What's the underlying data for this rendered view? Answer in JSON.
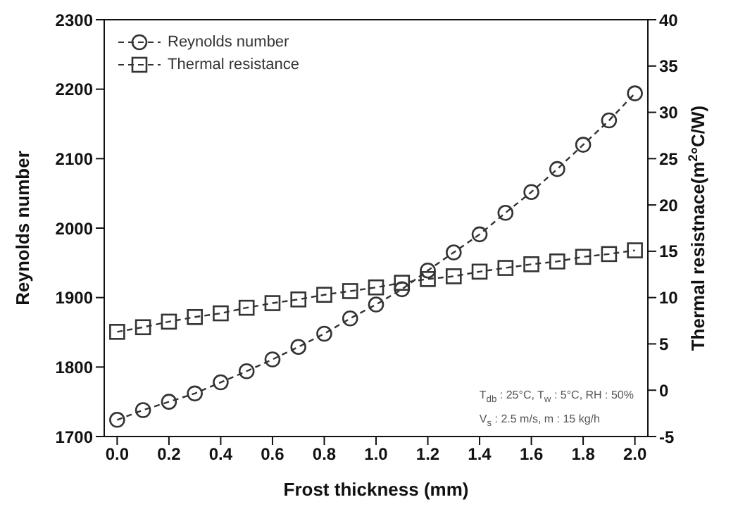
{
  "chart_data": {
    "type": "line",
    "xlabel": "Frost thickness (mm)",
    "ylabel": "Reynolds number",
    "y2label": "Thermal resistnace(m$^{2}$°C/W)",
    "x": [
      0.0,
      0.1,
      0.2,
      0.3,
      0.4,
      0.5,
      0.6,
      0.7,
      0.8,
      0.9,
      1.0,
      1.1,
      1.2,
      1.3,
      1.4,
      1.5,
      1.6,
      1.7,
      1.8,
      1.9,
      2.0
    ],
    "series": [
      {
        "name": "Reynolds number",
        "color": "#333333",
        "marker": "circle",
        "values": [
          1724,
          1738,
          1750,
          1762,
          1778,
          1794,
          1811,
          1829,
          1848,
          1870,
          1890,
          1912,
          1939,
          1965,
          1991,
          2022,
          2052,
          2085,
          2120,
          2155,
          2194
        ]
      },
      {
        "name": "Thermal resistance",
        "color": "#333333",
        "marker": "square",
        "axis": "y2",
        "values": [
          6.3,
          6.8,
          7.4,
          7.9,
          8.3,
          8.9,
          9.4,
          9.8,
          10.3,
          10.7,
          11.1,
          11.6,
          12.0,
          12.3,
          12.8,
          13.2,
          13.6,
          13.9,
          14.4,
          14.7,
          15.1
        ]
      }
    ],
    "line_style": "dashed",
    "xlim": [
      -0.05,
      2.05
    ],
    "xticks": [
      {
        "value": 0,
        "label": "0.0"
      },
      {
        "value": 0.2,
        "label": "0.2"
      },
      {
        "value": 0.4,
        "label": "0.4"
      },
      {
        "value": 0.6,
        "label": "0.6"
      },
      {
        "value": 0.8,
        "label": "0.8"
      },
      {
        "value": 1,
        "label": "1.0"
      },
      {
        "value": 1.2,
        "label": "1.2"
      },
      {
        "value": 1.4,
        "label": "1.4"
      },
      {
        "value": 1.6,
        "label": "1.6"
      },
      {
        "value": 1.8,
        "label": "1.8"
      },
      {
        "value": 2,
        "label": "2.0"
      }
    ],
    "ylim": [
      1700,
      2300
    ],
    "yticks": [
      1700,
      1800,
      1900,
      2000,
      2100,
      2200,
      2300
    ],
    "y2lim": [
      -5,
      40
    ],
    "y2ticks": [
      -5,
      0,
      5,
      10,
      15,
      20,
      25,
      30,
      35,
      40
    ],
    "legend": "top left",
    "grid": false,
    "annotations": [
      "T$_{db}$ : 25°C, T$_{w}$ : 5°C, RH : 50%",
      "V$_{s}$ : 2.5 m/s, m : 15 kg/h"
    ]
  }
}
